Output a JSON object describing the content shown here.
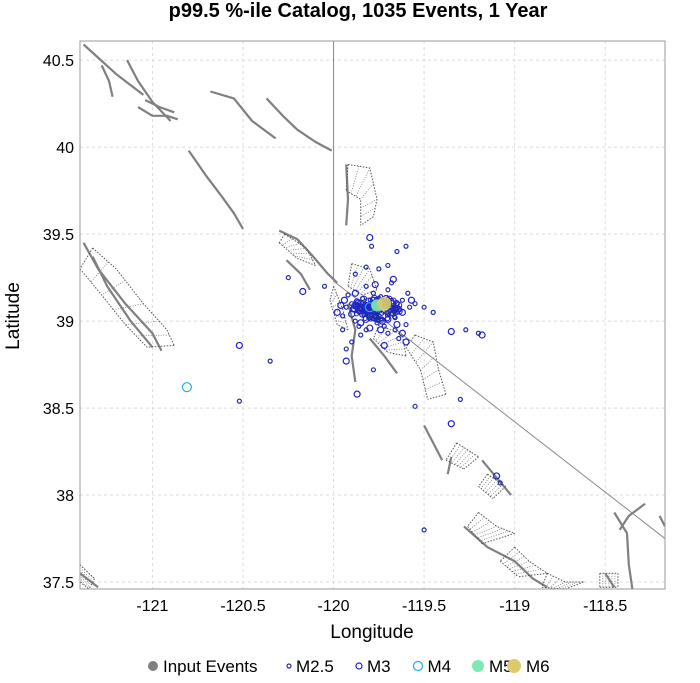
{
  "chart_data": {
    "type": "scatter",
    "title": "p99.5 %-ile Catalog, 1035 Events, 1 Year",
    "xlabel": "Longitude",
    "ylabel": "Latitude",
    "xlim": [
      -121.4,
      -118.17
    ],
    "ylim": [
      37.46,
      40.61
    ],
    "x_ticks": [
      -121,
      -120.5,
      -120,
      -119.5,
      -119,
      -118.5
    ],
    "x_tick_labels": [
      "-121",
      "-120.5",
      "-120",
      "-119.5",
      "-119",
      "-118.5"
    ],
    "y_ticks": [
      37.5,
      38,
      38.5,
      39,
      39.5,
      40,
      40.5
    ],
    "y_tick_labels": [
      "37.5",
      "38",
      "38.5",
      "39",
      "39.5",
      "40",
      "40.5"
    ],
    "grid": true,
    "legend_position": "bottom",
    "legend": [
      {
        "label": "Input Events",
        "color": "#808080",
        "fill": true,
        "size": 5
      },
      {
        "label": "M2.5",
        "color": "#1f2fa6",
        "fill": false,
        "size": 2
      },
      {
        "label": "M3",
        "color": "#2222cc",
        "fill": false,
        "size": 3
      },
      {
        "label": "M4",
        "color": "#1ab0e0",
        "fill": false,
        "size": 4.5
      },
      {
        "label": "M5",
        "color": "#7ee8b4",
        "fill": true,
        "size": 6
      },
      {
        "label": "M6",
        "color": "#dccb6a",
        "fill": true,
        "size": 7
      }
    ],
    "colors": {
      "fault": "#808080",
      "grid": "#dcdcdc",
      "frame": "#9a9a9a"
    },
    "reference_lines": [
      {
        "x": [
          -120.0,
          -120.0
        ],
        "y": [
          40.61,
          39.23
        ]
      },
      {
        "x": [
          -120.0,
          -118.17
        ],
        "y": [
          39.23,
          37.75
        ]
      }
    ],
    "faults": [
      [
        [
          -121.38,
          40.59
        ],
        [
          -121.2,
          40.42
        ],
        [
          -121.05,
          40.3
        ]
      ],
      [
        [
          -121.28,
          40.47
        ],
        [
          -121.24,
          40.38
        ],
        [
          -121.22,
          40.29
        ]
      ],
      [
        [
          -121.14,
          40.5
        ],
        [
          -121.08,
          40.38
        ],
        [
          -121.0,
          40.26
        ],
        [
          -120.9,
          40.15
        ]
      ],
      [
        [
          -121.08,
          40.23
        ],
        [
          -121.0,
          40.18
        ],
        [
          -120.92,
          40.18
        ],
        [
          -120.86,
          40.16
        ]
      ],
      [
        [
          -121.04,
          40.27
        ],
        [
          -120.96,
          40.23
        ],
        [
          -120.88,
          40.2
        ]
      ],
      [
        [
          -120.68,
          40.32
        ],
        [
          -120.55,
          40.28
        ],
        [
          -120.45,
          40.15
        ],
        [
          -120.32,
          40.05
        ]
      ],
      [
        [
          -120.37,
          40.28
        ],
        [
          -120.28,
          40.18
        ],
        [
          -120.2,
          40.1
        ],
        [
          -120.1,
          40.03
        ],
        [
          -120.01,
          39.98
        ]
      ],
      [
        [
          -120.8,
          39.98
        ],
        [
          -120.7,
          39.83
        ],
        [
          -120.62,
          39.72
        ]
      ],
      [
        [
          -120.62,
          39.72
        ],
        [
          -120.55,
          39.62
        ],
        [
          -120.5,
          39.53
        ]
      ],
      [
        [
          -120.3,
          39.52
        ],
        [
          -120.2,
          39.47
        ],
        [
          -120.12,
          39.38
        ],
        [
          -120.03,
          39.27
        ],
        [
          -119.98,
          39.22
        ]
      ],
      [
        [
          -120.26,
          39.35
        ],
        [
          -120.18,
          39.27
        ],
        [
          -120.13,
          39.18
        ]
      ],
      [
        [
          -119.92,
          39.1
        ],
        [
          -119.88,
          38.95
        ],
        [
          -119.9,
          38.8
        ],
        [
          -119.88,
          38.65
        ]
      ],
      [
        [
          -119.8,
          38.9
        ],
        [
          -119.72,
          38.8
        ],
        [
          -119.65,
          38.7
        ]
      ],
      [
        [
          -121.38,
          39.45
        ],
        [
          -121.3,
          39.3
        ],
        [
          -121.15,
          39.1
        ],
        [
          -121.0,
          38.93
        ],
        [
          -120.95,
          38.83
        ]
      ],
      [
        [
          -121.33,
          39.37
        ],
        [
          -121.25,
          39.2
        ],
        [
          -121.12,
          39.0
        ],
        [
          -121.0,
          38.85
        ]
      ],
      [
        [
          -119.93,
          39.9
        ],
        [
          -119.92,
          39.7
        ],
        [
          -119.93,
          39.55
        ]
      ],
      [
        [
          -119.5,
          38.4
        ],
        [
          -119.45,
          38.3
        ],
        [
          -119.4,
          38.2
        ]
      ],
      [
        [
          -119.35,
          38.22
        ],
        [
          -119.37,
          38.12
        ]
      ],
      [
        [
          -119.18,
          38.2
        ],
        [
          -119.1,
          38.1
        ],
        [
          -119.02,
          38.0
        ]
      ],
      [
        [
          -119.28,
          37.82
        ],
        [
          -119.15,
          37.7
        ],
        [
          -119.0,
          37.62
        ],
        [
          -118.9,
          37.52
        ],
        [
          -118.82,
          37.47
        ]
      ],
      [
        [
          -118.5,
          37.55
        ],
        [
          -118.45,
          37.47
        ]
      ],
      [
        [
          -118.45,
          37.9
        ],
        [
          -118.38,
          37.78
        ],
        [
          -118.37,
          37.6
        ],
        [
          -118.35,
          37.46
        ]
      ],
      [
        [
          -118.28,
          37.95
        ],
        [
          -118.37,
          37.88
        ],
        [
          -118.42,
          37.8
        ]
      ],
      [
        [
          -118.2,
          37.88
        ],
        [
          -118.17,
          37.82
        ]
      ],
      [
        [
          -121.4,
          37.55
        ],
        [
          -121.3,
          37.47
        ]
      ]
    ],
    "fault_blocks": [
      {
        "top": [
          [
            -119.92,
            39.9
          ],
          [
            -119.8,
            39.88
          ],
          [
            -119.76,
            39.7
          ],
          [
            -119.78,
            39.6
          ]
        ],
        "bottom": [
          [
            -119.93,
            39.75
          ],
          [
            -119.85,
            39.7
          ],
          [
            -119.85,
            39.55
          ]
        ]
      },
      {
        "top": [
          [
            -121.33,
            39.42
          ],
          [
            -121.2,
            39.3
          ],
          [
            -121.05,
            39.1
          ],
          [
            -120.92,
            38.95
          ],
          [
            -120.88,
            38.86
          ]
        ],
        "bottom": [
          [
            -121.4,
            39.3
          ],
          [
            -121.28,
            39.15
          ],
          [
            -121.15,
            38.98
          ],
          [
            -121.03,
            38.85
          ]
        ]
      },
      {
        "top": [
          [
            -120.27,
            39.5
          ],
          [
            -120.15,
            39.42
          ],
          [
            -120.1,
            39.32
          ]
        ],
        "bottom": [
          [
            -120.3,
            39.45
          ],
          [
            -120.2,
            39.36
          ]
        ]
      },
      {
        "top": [
          [
            -120.0,
            39.2
          ],
          [
            -119.95,
            39.07
          ],
          [
            -119.92,
            38.95
          ]
        ],
        "bottom": [
          [
            -120.02,
            39.12
          ],
          [
            -119.98,
            38.98
          ]
        ]
      },
      {
        "top": [
          [
            -119.9,
            39.33
          ],
          [
            -119.8,
            39.3
          ],
          [
            -119.76,
            39.18
          ]
        ],
        "bottom": [
          [
            -119.92,
            39.2
          ],
          [
            -119.84,
            39.15
          ]
        ]
      },
      {
        "top": [
          [
            -119.55,
            38.92
          ],
          [
            -119.45,
            38.88
          ],
          [
            -119.42,
            38.72
          ],
          [
            -119.38,
            38.58
          ]
        ],
        "bottom": [
          [
            -119.6,
            38.85
          ],
          [
            -119.52,
            38.72
          ],
          [
            -119.48,
            38.55
          ]
        ]
      },
      {
        "top": [
          [
            -119.75,
            38.98
          ],
          [
            -119.62,
            38.92
          ],
          [
            -119.6,
            38.8
          ]
        ],
        "bottom": [
          [
            -119.78,
            38.9
          ],
          [
            -119.7,
            38.82
          ]
        ]
      },
      {
        "top": [
          [
            -119.2,
            37.9
          ],
          [
            -119.1,
            37.82
          ],
          [
            -119.0,
            37.78
          ]
        ],
        "bottom": [
          [
            -119.26,
            37.82
          ],
          [
            -119.18,
            37.72
          ]
        ]
      },
      {
        "top": [
          [
            -119.0,
            37.7
          ],
          [
            -118.92,
            37.62
          ],
          [
            -118.82,
            37.55
          ]
        ],
        "bottom": [
          [
            -119.08,
            37.62
          ],
          [
            -118.98,
            37.53
          ]
        ]
      },
      {
        "top": [
          [
            -118.82,
            37.55
          ],
          [
            -118.72,
            37.5
          ],
          [
            -118.62,
            37.5
          ]
        ],
        "bottom": [
          [
            -118.85,
            37.47
          ],
          [
            -118.72,
            37.46
          ]
        ]
      },
      {
        "top": [
          [
            -119.32,
            38.3
          ],
          [
            -119.2,
            38.22
          ]
        ],
        "bottom": [
          [
            -119.38,
            38.2
          ],
          [
            -119.28,
            38.15
          ]
        ]
      },
      {
        "top": [
          [
            -118.53,
            37.55
          ],
          [
            -118.43,
            37.55
          ]
        ],
        "bottom": [
          [
            -118.53,
            37.47
          ],
          [
            -118.43,
            37.47
          ]
        ]
      },
      {
        "top": [
          [
            -119.15,
            38.12
          ],
          [
            -119.05,
            38.05
          ]
        ],
        "bottom": [
          [
            -119.2,
            38.05
          ],
          [
            -119.12,
            37.98
          ]
        ]
      },
      {
        "top": [
          [
            -121.4,
            37.6
          ],
          [
            -121.32,
            37.52
          ]
        ],
        "bottom": [
          [
            -121.4,
            37.5
          ],
          [
            -121.35,
            37.46
          ]
        ]
      }
    ],
    "series": [
      {
        "name": "M2.5",
        "points": [
          [
            -119.79,
            39.43
          ],
          [
            -119.65,
            39.4
          ],
          [
            -119.6,
            39.43
          ],
          [
            -119.82,
            39.31
          ],
          [
            -119.75,
            39.3
          ],
          [
            -119.7,
            39.32
          ],
          [
            -119.88,
            39.27
          ],
          [
            -120.05,
            39.2
          ],
          [
            -120.25,
            39.25
          ],
          [
            -119.9,
            39.1
          ],
          [
            -119.93,
            39.08
          ],
          [
            -119.95,
            39.03
          ],
          [
            -119.88,
            39.0
          ],
          [
            -119.86,
            38.97
          ],
          [
            -119.82,
            38.95
          ],
          [
            -119.72,
            38.97
          ],
          [
            -119.66,
            38.95
          ],
          [
            -119.6,
            38.98
          ],
          [
            -119.62,
            39.12
          ],
          [
            -119.58,
            39.08
          ],
          [
            -119.55,
            39.1
          ],
          [
            -119.7,
            39.18
          ],
          [
            -119.78,
            39.16
          ],
          [
            -119.84,
            39.13
          ],
          [
            -119.74,
            39.14
          ],
          [
            -119.8,
            39.02
          ],
          [
            -119.76,
            38.99
          ],
          [
            -119.7,
            38.93
          ],
          [
            -119.64,
            38.9
          ],
          [
            -119.85,
            38.92
          ],
          [
            -119.9,
            38.88
          ],
          [
            -119.93,
            38.84
          ],
          [
            -119.78,
            38.72
          ],
          [
            -120.35,
            38.77
          ],
          [
            -120.52,
            38.54
          ],
          [
            -119.55,
            38.51
          ],
          [
            -119.3,
            38.55
          ],
          [
            -119.08,
            38.07
          ],
          [
            -119.5,
            37.8
          ],
          [
            -119.2,
            38.93
          ],
          [
            -119.27,
            38.95
          ],
          [
            -119.95,
            38.95
          ],
          [
            -119.66,
            39.02
          ],
          [
            -119.59,
            39.16
          ],
          [
            -119.87,
            39.06
          ],
          [
            -119.68,
            39.22
          ],
          [
            -119.82,
            39.2
          ],
          [
            -119.92,
            39.15
          ],
          [
            -119.5,
            39.08
          ],
          [
            -119.45,
            39.05
          ]
        ]
      },
      {
        "name": "M3",
        "points": [
          [
            -119.8,
            39.48
          ],
          [
            -120.52,
            38.86
          ],
          [
            -119.87,
            38.58
          ],
          [
            -119.35,
            38.41
          ],
          [
            -119.1,
            38.11
          ],
          [
            -119.93,
            38.77
          ],
          [
            -119.6,
            38.88
          ],
          [
            -119.35,
            38.94
          ],
          [
            -119.18,
            38.92
          ],
          [
            -119.72,
            38.86
          ],
          [
            -120.17,
            39.17
          ],
          [
            -119.98,
            39.05
          ],
          [
            -119.62,
            39.05
          ],
          [
            -119.57,
            39.12
          ],
          [
            -119.67,
            39.24
          ],
          [
            -119.84,
            39.04
          ],
          [
            -119.8,
            38.96
          ],
          [
            -119.7,
            39.01
          ],
          [
            -119.88,
            39.16
          ],
          [
            -119.77,
            39.21
          ],
          [
            -119.94,
            39.12
          ],
          [
            -119.65,
            38.98
          ],
          [
            -119.62,
            38.93
          ],
          [
            -119.85,
            38.99
          ],
          [
            -119.89,
            39.07
          ],
          [
            -119.74,
            38.95
          ],
          [
            -119.68,
            39.1
          ],
          [
            -119.96,
            39.09
          ],
          [
            -119.78,
            39.12
          ],
          [
            -119.82,
            39.06
          ],
          [
            -119.73,
            39.0
          ],
          [
            -119.87,
            39.11
          ],
          [
            -119.9,
            39.04
          ],
          [
            -119.66,
            39.07
          ],
          [
            -119.71,
            39.13
          ]
        ]
      },
      {
        "name": "M4",
        "points": [
          [
            -120.81,
            38.62
          ],
          [
            -119.74,
            39.09
          ],
          [
            -119.8,
            39.08
          ]
        ]
      },
      {
        "name": "M5",
        "points": [
          [
            -119.76,
            39.09
          ]
        ]
      },
      {
        "name": "M6",
        "points": [
          [
            -119.72,
            39.1
          ]
        ]
      }
    ],
    "cluster": {
      "center": [
        -119.76,
        39.07
      ],
      "spread": [
        0.13,
        0.07
      ]
    }
  }
}
